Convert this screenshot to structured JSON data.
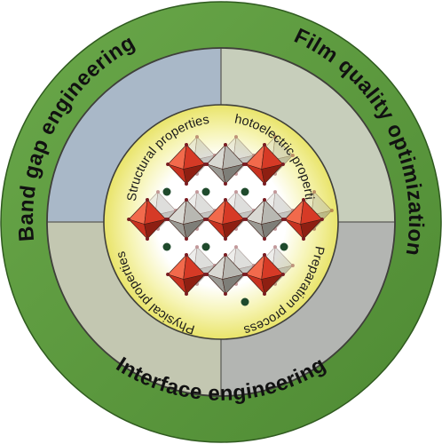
{
  "outer_ring": {
    "labels": {
      "band_gap": "Band gap engineering",
      "film_quality": "Film quality optimization",
      "interface": "Interface engineering"
    },
    "color": "#5e9e3f"
  },
  "inner_ring": {
    "segments": {
      "structural": "Structural properties",
      "photoelectric": "Photoelectric properties",
      "preparation": "Preparation process",
      "physical": "Physical properties"
    },
    "colors": {
      "structural": "#a9b8c8",
      "photoelectric": "#c7cebb",
      "preparation": "#b3b5b2",
      "physical": "#c3c7b1"
    }
  },
  "center": {
    "name": "perovskite-crystal-structure",
    "octahedron_color": "#d63a26",
    "grey_color": "#7e7e78",
    "glow_color": "#f2f07a"
  }
}
